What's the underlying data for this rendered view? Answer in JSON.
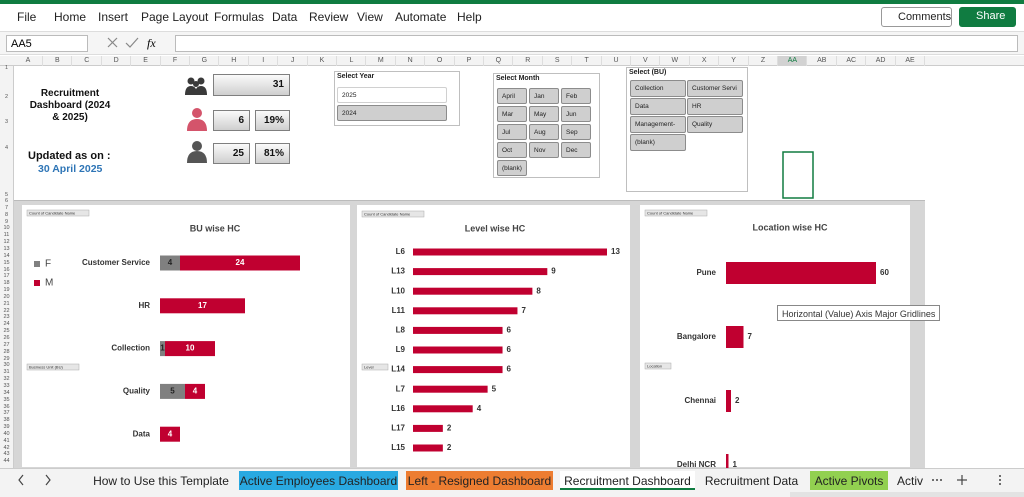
{
  "ribbon": {
    "menu": [
      "File",
      "Home",
      "Insert",
      "Page Layout",
      "Formulas",
      "Data",
      "Review",
      "View",
      "Automate",
      "Help"
    ],
    "comments": "Comments",
    "share": "Share"
  },
  "formula_bar": {
    "name_box": "AA5",
    "fx": "fx"
  },
  "sheet": {
    "columns": [
      "A",
      "B",
      "C",
      "D",
      "E",
      "F",
      "G",
      "H",
      "I",
      "J",
      "K",
      "L",
      "M",
      "N",
      "O",
      "P",
      "Q",
      "R",
      "S",
      "T",
      "U",
      "V",
      "W",
      "X",
      "Y",
      "Z",
      "AA",
      "AB",
      "AC",
      "AD",
      "AE"
    ],
    "rows": [
      1,
      2,
      3,
      4,
      5,
      6,
      7,
      8,
      9,
      10,
      11,
      12,
      13,
      14,
      15,
      16,
      17,
      18,
      19,
      20,
      21,
      22,
      23,
      24,
      25,
      26,
      27,
      28,
      29,
      30,
      31,
      32,
      33,
      34,
      35,
      36,
      37,
      38,
      39,
      40,
      41,
      42,
      43,
      44
    ],
    "selected_column": 26
  },
  "dashboard": {
    "title": "Recruitment Dashboard (2024 & 2025)",
    "updated_label": "Updated as on :",
    "updated_date": "30 April 2025",
    "kpis": {
      "total": 31,
      "female": 6,
      "female_share": "19%",
      "male": 25,
      "male_share": "81%"
    }
  },
  "slicers": [
    {
      "title": "Select Year",
      "items": [
        "2025",
        "2024"
      ],
      "selected": [
        false,
        true
      ]
    },
    {
      "title": "Select Month",
      "items": [
        "April",
        "Jan",
        "Feb",
        "Mar",
        "May",
        "Jun",
        "Jul",
        "Aug",
        "Sep",
        "Oct",
        "Nov",
        "Dec",
        "(blank)"
      ]
    },
    {
      "title": "Select (BU)",
      "items": [
        "Collection",
        "Customer Servi",
        "Data",
        "HR",
        "Management-",
        "Quality",
        "(blank)"
      ]
    }
  ],
  "chart_data": [
    {
      "type": "bar",
      "orientation": "horizontal",
      "stacked": true,
      "title": "BU wise HC",
      "value_field": "Count of Candidate Name",
      "category_field": "Business Unit (BU)",
      "categories": [
        "Customer Service",
        "HR",
        "Collection",
        "Quality",
        "Data"
      ],
      "series": [
        {
          "name": "F",
          "color": "#808080",
          "values": [
            4,
            null,
            1,
            5,
            null
          ]
        },
        {
          "name": "M",
          "color": "#c00030",
          "values": [
            24,
            17,
            10,
            4,
            4
          ]
        }
      ],
      "legend": "left",
      "data_labels": "inside"
    },
    {
      "type": "bar",
      "orientation": "horizontal",
      "title": "Level wise HC",
      "value_field": "Count of Candidate Name",
      "category_field": "Level",
      "categories": [
        "L6",
        "L13",
        "L10",
        "L11",
        "L8",
        "L9",
        "L14",
        "L7",
        "L16",
        "L17",
        "L15"
      ],
      "values": [
        13,
        9,
        8,
        7,
        6,
        6,
        6,
        5,
        4,
        2,
        2
      ],
      "color": "#c00030",
      "data_labels": "outside"
    },
    {
      "type": "bar",
      "orientation": "horizontal",
      "title": "Location wise HC",
      "value_field": "Count of Candidate Name",
      "category_field": "Location",
      "categories": [
        "Pune",
        "Bangalore",
        "Chennai",
        "Delhi NCR"
      ],
      "values": [
        60,
        7,
        2,
        1
      ],
      "color": "#c00030",
      "data_labels": "outside"
    }
  ],
  "tooltip": "Horizontal (Value) Axis Major Gridlines",
  "tabs": {
    "items": [
      {
        "label": "How to Use this Template"
      },
      {
        "label": "Active Employees Dashboard",
        "color": "#29a9e1"
      },
      {
        "label": "Left - Resigned Dashboard",
        "color": "#ed7d31"
      },
      {
        "label": "Recruitment Dashboard"
      },
      {
        "label": "Recruitment Data"
      },
      {
        "label": "Active Pivots",
        "color": "#92d050"
      },
      {
        "label": "Activ"
      }
    ],
    "active": 3
  }
}
